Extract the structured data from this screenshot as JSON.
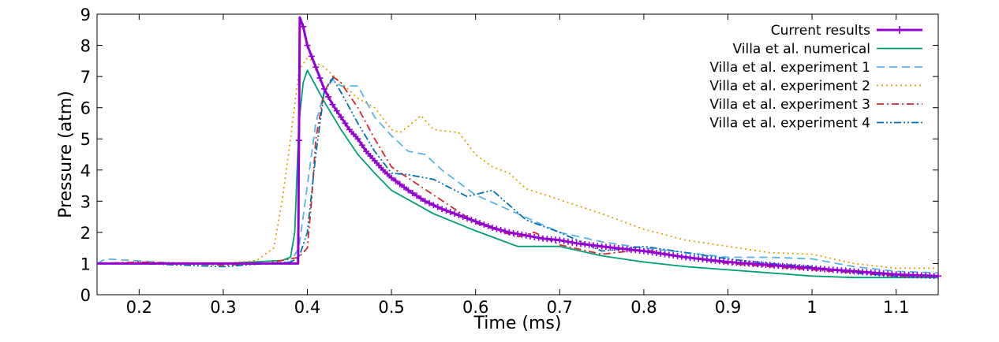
{
  "chart_data": {
    "type": "line",
    "title": "",
    "xlabel": "Time (ms)",
    "ylabel": "Pressure (atm)",
    "xlim": [
      0.15,
      1.15
    ],
    "ylim": [
      0,
      9
    ],
    "xticks": [
      0.2,
      0.3,
      0.4,
      0.5,
      0.6,
      0.7,
      0.8,
      0.9,
      1,
      1.1
    ],
    "xtick_labels": [
      "0.2",
      "0.3",
      "0.4",
      "0.5",
      "0.6",
      "0.7",
      "0.8",
      "0.9",
      "1",
      "1.1"
    ],
    "yticks": [
      0,
      1,
      2,
      3,
      4,
      5,
      6,
      7,
      8,
      9
    ],
    "ytick_labels": [
      "0",
      "1",
      "2",
      "3",
      "4",
      "5",
      "6",
      "7",
      "8",
      "9"
    ],
    "grid": false,
    "legend_position": "top-right",
    "series": [
      {
        "name": "Current results",
        "color": "#9400D3",
        "dash": "solid",
        "marker": "plus",
        "x": [
          0.15,
          0.2,
          0.3,
          0.35,
          0.389,
          0.391,
          0.395,
          0.4,
          0.41,
          0.42,
          0.43,
          0.44,
          0.45,
          0.46,
          0.47,
          0.48,
          0.49,
          0.5,
          0.52,
          0.54,
          0.56,
          0.58,
          0.6,
          0.62,
          0.64,
          0.66,
          0.68,
          0.7,
          0.72,
          0.75,
          0.8,
          0.85,
          0.9,
          0.95,
          1.0,
          1.05,
          1.1,
          1.15
        ],
        "y": [
          1.0,
          1.0,
          1.0,
          1.0,
          1.0,
          8.9,
          8.6,
          8.0,
          7.3,
          6.6,
          6.1,
          5.7,
          5.3,
          5.0,
          4.6,
          4.3,
          4.0,
          3.75,
          3.35,
          3.0,
          2.75,
          2.55,
          2.35,
          2.15,
          2.0,
          1.9,
          1.8,
          1.75,
          1.65,
          1.55,
          1.4,
          1.2,
          1.05,
          0.95,
          0.85,
          0.75,
          0.65,
          0.6
        ]
      },
      {
        "name": "Villa et al. numerical",
        "color": "#009E73",
        "dash": "solid",
        "marker": "none",
        "x": [
          0.15,
          0.3,
          0.37,
          0.38,
          0.385,
          0.39,
          0.395,
          0.4,
          0.42,
          0.44,
          0.46,
          0.48,
          0.5,
          0.55,
          0.6,
          0.65,
          0.7,
          0.75,
          0.8,
          0.85,
          0.9,
          0.95,
          1.0,
          1.05,
          1.1,
          1.15
        ],
        "y": [
          1.0,
          1.0,
          1.1,
          1.2,
          2.0,
          5.5,
          6.8,
          7.2,
          6.2,
          5.3,
          4.5,
          3.9,
          3.35,
          2.6,
          2.05,
          1.55,
          1.55,
          1.25,
          1.05,
          0.9,
          0.8,
          0.7,
          0.6,
          0.55,
          0.55,
          0.55
        ]
      },
      {
        "name": "Villa et al. experiment 1",
        "color": "#56B4E9",
        "dash": "dashed",
        "marker": "none",
        "x": [
          0.15,
          0.16,
          0.25,
          0.35,
          0.38,
          0.39,
          0.4,
          0.41,
          0.42,
          0.43,
          0.44,
          0.45,
          0.46,
          0.47,
          0.48,
          0.5,
          0.52,
          0.54,
          0.56,
          0.6,
          0.65,
          0.7,
          0.75,
          0.8,
          0.9,
          0.95,
          1.0,
          1.05,
          1.1,
          1.15
        ],
        "y": [
          1.0,
          1.15,
          1.0,
          1.0,
          1.05,
          1.5,
          3.5,
          5.5,
          6.5,
          6.9,
          6.7,
          6.7,
          6.7,
          6.2,
          5.7,
          5.1,
          4.6,
          4.5,
          4.0,
          3.2,
          2.6,
          2.0,
          1.7,
          1.5,
          1.2,
          1.2,
          1.15,
          0.9,
          0.75,
          0.7
        ]
      },
      {
        "name": "Villa et al. experiment 2",
        "color": "#E69F00",
        "dash": "dotted",
        "marker": "none",
        "x": [
          0.15,
          0.2,
          0.3,
          0.34,
          0.36,
          0.37,
          0.38,
          0.39,
          0.4,
          0.42,
          0.44,
          0.46,
          0.48,
          0.5,
          0.51,
          0.52,
          0.535,
          0.55,
          0.58,
          0.6,
          0.62,
          0.64,
          0.66,
          0.7,
          0.75,
          0.8,
          0.85,
          0.9,
          0.95,
          1.0,
          1.05,
          1.1,
          1.15
        ],
        "y": [
          1.0,
          1.05,
          1.0,
          1.1,
          1.5,
          3.0,
          5.0,
          7.2,
          7.6,
          7.3,
          6.8,
          6.3,
          6.0,
          5.3,
          5.2,
          5.4,
          5.75,
          5.3,
          5.2,
          4.5,
          4.1,
          3.9,
          3.4,
          3.05,
          2.6,
          2.1,
          1.75,
          1.55,
          1.35,
          1.3,
          1.0,
          0.85,
          0.85
        ]
      },
      {
        "name": "Villa et al. experiment 3",
        "color": "#D62728",
        "dash": "dash-dot",
        "marker": "none",
        "x": [
          0.15,
          0.2,
          0.3,
          0.35,
          0.39,
          0.4,
          0.405,
          0.41,
          0.42,
          0.43,
          0.44,
          0.46,
          0.48,
          0.5,
          0.55,
          0.6,
          0.65,
          0.67,
          0.7,
          0.75,
          0.8,
          0.85,
          0.9,
          0.95,
          1.0,
          1.05,
          1.1,
          1.15
        ],
        "y": [
          1.0,
          1.05,
          0.95,
          1.0,
          1.2,
          1.5,
          3.0,
          5.0,
          6.5,
          7.0,
          6.8,
          6.0,
          5.0,
          4.1,
          3.2,
          2.3,
          1.85,
          2.0,
          1.6,
          1.3,
          1.45,
          1.2,
          1.0,
          0.9,
          0.8,
          0.7,
          0.6,
          0.6
        ]
      },
      {
        "name": "Villa et al. experiment 4",
        "color": "#0072B2",
        "dash": "dash-dot-dot",
        "marker": "none",
        "x": [
          0.15,
          0.2,
          0.3,
          0.35,
          0.38,
          0.39,
          0.4,
          0.41,
          0.42,
          0.43,
          0.44,
          0.46,
          0.48,
          0.5,
          0.52,
          0.55,
          0.59,
          0.62,
          0.66,
          0.7,
          0.75,
          0.8,
          0.85,
          0.9,
          0.95,
          1.0,
          1.05,
          1.1,
          1.15
        ],
        "y": [
          1.0,
          1.0,
          0.9,
          1.0,
          1.05,
          1.2,
          2.0,
          4.5,
          6.5,
          6.95,
          6.5,
          5.5,
          4.6,
          3.9,
          3.85,
          3.7,
          3.15,
          3.35,
          2.4,
          2.0,
          1.4,
          1.55,
          1.35,
          1.15,
          1.0,
          0.9,
          0.7,
          0.6,
          0.6
        ]
      }
    ]
  }
}
